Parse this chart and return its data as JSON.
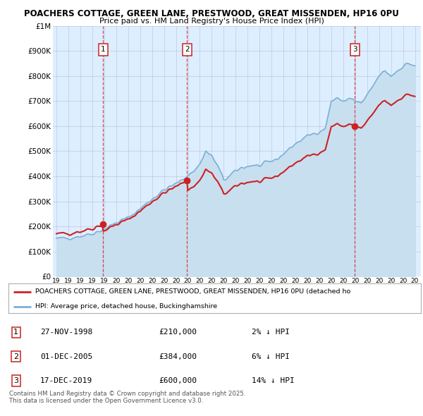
{
  "title1": "POACHERS COTTAGE, GREEN LANE, PRESTWOOD, GREAT MISSENDEN, HP16 0PU",
  "title2": "Price paid vs. HM Land Registry's House Price Index (HPI)",
  "ylabel_ticks": [
    "£0",
    "£100K",
    "£200K",
    "£300K",
    "£400K",
    "£500K",
    "£600K",
    "£700K",
    "£800K",
    "£900K",
    "£1M"
  ],
  "ytick_vals": [
    0,
    100000,
    200000,
    300000,
    400000,
    500000,
    600000,
    700000,
    800000,
    900000,
    1000000
  ],
  "sale_year_nums": [
    1998.9,
    2005.92,
    2019.96
  ],
  "sale_prices": [
    210000,
    384000,
    600000
  ],
  "sale_labels": [
    "1",
    "2",
    "3"
  ],
  "hpi_color": "#7ab0d4",
  "hpi_fill_color": "#c8dff0",
  "sale_color": "#cc2222",
  "background_color": "#ddeeff",
  "plot_bg_color": "#ffffff",
  "legend_line1": "POACHERS COTTAGE, GREEN LANE, PRESTWOOD, GREAT MISSENDEN, HP16 0PU (detached ho",
  "legend_line2": "HPI: Average price, detached house, Buckinghamshire",
  "table_entries": [
    {
      "label": "1",
      "date": "27-NOV-1998",
      "price": "£210,000",
      "hpi": "2% ↓ HPI"
    },
    {
      "label": "2",
      "date": "01-DEC-2005",
      "price": "£384,000",
      "hpi": "6% ↓ HPI"
    },
    {
      "label": "3",
      "date": "17-DEC-2019",
      "price": "£600,000",
      "hpi": "14% ↓ HPI"
    }
  ],
  "footer": "Contains HM Land Registry data © Crown copyright and database right 2025.\nThis data is licensed under the Open Government Licence v3.0."
}
